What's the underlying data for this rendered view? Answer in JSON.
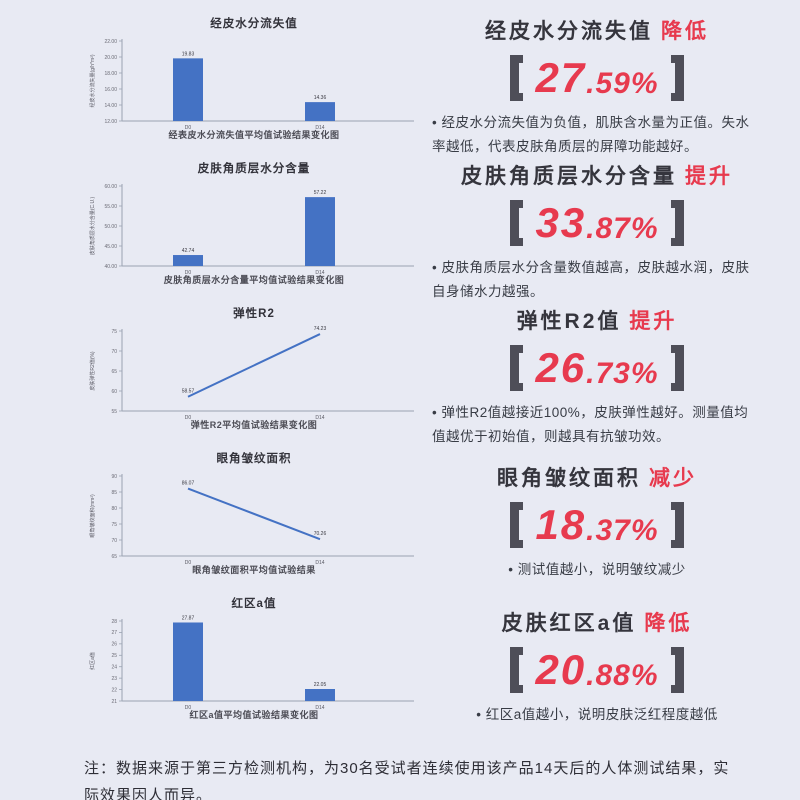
{
  "page": {
    "background": "#e8eaf3",
    "note": "注：数据来源于第三方检测机构，为30名受试者连续使用该产品14天后的人体测试结果，实际效果因人而异。"
  },
  "colors": {
    "red": "#e73a4e",
    "blue": "#4472c4",
    "dark": "#35353d"
  },
  "icons": {
    "bullet": "•"
  },
  "chart_data": [
    {
      "type": "bar",
      "title": "经皮水分流失值",
      "ylabel": "经皮水分流失量(g/h*m²)",
      "caption": "经表皮水分流失值平均值试验结果变化图",
      "categories": [
        "D0",
        "D14"
      ],
      "values": [
        19.83,
        14.36
      ],
      "ylim": [
        12,
        22
      ],
      "yticks": [
        12,
        14,
        16,
        18,
        20,
        22
      ],
      "ytick_labels": [
        "12.00",
        "14.00",
        "16.00",
        "18.00",
        "20.00",
        "22.00"
      ],
      "grid": false,
      "legend": "none"
    },
    {
      "type": "bar",
      "title": "皮肤角质层水分含量",
      "ylabel": "皮肤角质层水分含量(C.U.)",
      "caption": "皮肤角质层水分含量平均值试验结果变化图",
      "categories": [
        "D0",
        "D14"
      ],
      "values": [
        42.74,
        57.22
      ],
      "ylim": [
        40,
        60
      ],
      "yticks": [
        40,
        45,
        50,
        55,
        60
      ],
      "ytick_labels": [
        "40.00",
        "45.00",
        "50.00",
        "55.00",
        "60.00"
      ],
      "grid": false,
      "legend": "none"
    },
    {
      "type": "line",
      "title": "弹性R2",
      "ylabel": "皮肤弹性R2值(%)",
      "caption": "弹性R2平均值试验结果变化图",
      "categories": [
        "D0",
        "D14"
      ],
      "values": [
        58.57,
        74.23
      ],
      "ylim": [
        55,
        75
      ],
      "yticks": [
        55,
        60,
        65,
        70,
        75
      ],
      "ytick_labels": [
        "55",
        "60",
        "65",
        "70",
        "75"
      ],
      "grid": false,
      "legend": "none"
    },
    {
      "type": "line",
      "title": "眼角皱纹面积",
      "ylabel": "眼角皱纹面积(mm²)",
      "caption": "眼角皱纹面积平均值试验结果",
      "categories": [
        "D0",
        "D14"
      ],
      "values": [
        86.07,
        70.26
      ],
      "ylim": [
        65,
        90
      ],
      "yticks": [
        65,
        70,
        75,
        80,
        85,
        90
      ],
      "ytick_labels": [
        "65",
        "70",
        "75",
        "80",
        "85",
        "90"
      ],
      "grid": false,
      "legend": "none"
    },
    {
      "type": "bar",
      "title": "红区a值",
      "ylabel": "红区a值",
      "caption": "红区a值平均值试验结果变化图",
      "categories": [
        "D0",
        "D14"
      ],
      "values": [
        27.87,
        22.05
      ],
      "ylim": [
        21,
        28
      ],
      "yticks": [
        21,
        22,
        23,
        24,
        25,
        26,
        27,
        28
      ],
      "ytick_labels": [
        "21",
        "22",
        "23",
        "24",
        "25",
        "26",
        "27",
        "28"
      ],
      "grid": false,
      "legend": "none"
    }
  ],
  "panels": [
    {
      "metric": "经皮水分流失值",
      "direction": "降低",
      "percent": {
        "main": "27",
        "rest": ".59%"
      },
      "desc": "经皮水分流失值为负值，肌肤含水量为正值。失水率越低，代表皮肤角质层的屏障功能越好。"
    },
    {
      "metric": "皮肤角质层水分含量",
      "direction": "提升",
      "percent": {
        "main": "33",
        "rest": ".87%"
      },
      "desc": "皮肤角质层水分含量数值越高，皮肤越水润，皮肤自身储水力越强。"
    },
    {
      "metric": "弹性R2值",
      "direction": "提升",
      "percent": {
        "main": "26",
        "rest": ".73%"
      },
      "desc": "弹性R2值越接近100%，皮肤弹性越好。测量值均值越优于初始值，则越具有抗皱功效。"
    },
    {
      "metric": "眼角皱纹面积",
      "direction": "减少",
      "percent": {
        "main": "18",
        "rest": ".37%"
      },
      "desc": "测试值越小，说明皱纹减少"
    },
    {
      "metric": "皮肤红区a值",
      "direction": "降低",
      "percent": {
        "main": "20",
        "rest": ".88%"
      },
      "desc": "红区a值越小，说明皮肤泛红程度越低"
    }
  ]
}
